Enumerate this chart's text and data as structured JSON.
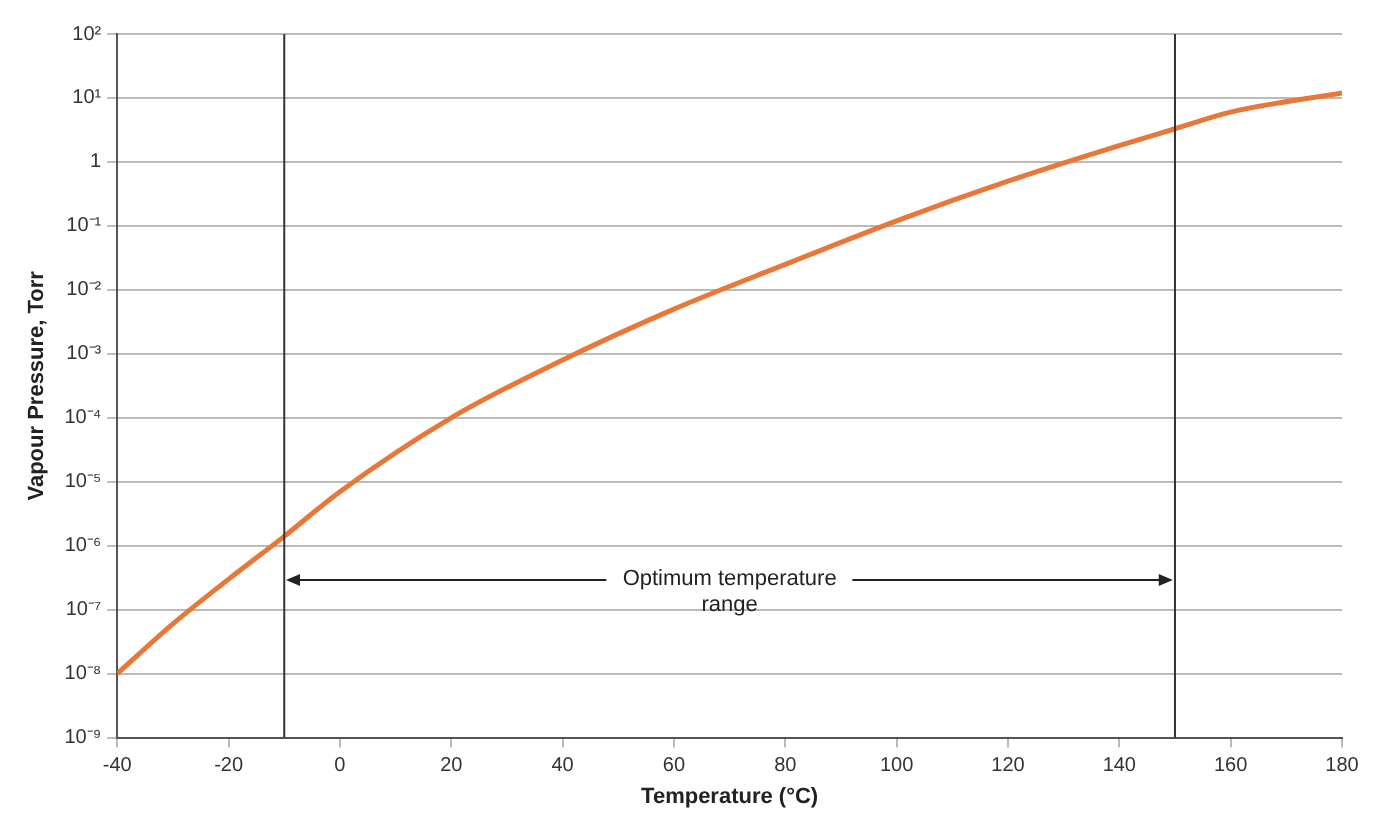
{
  "chart_data": {
    "type": "line",
    "xlabel": "Temperature (°C)",
    "ylabel": "Vapour Pressure, Torr",
    "x": [
      -40,
      -30,
      -20,
      -10,
      0,
      20,
      40,
      60,
      80,
      100,
      120,
      140,
      150,
      160,
      180
    ],
    "series": [
      {
        "color": "#e8783a",
        "values": [
          1e-08,
          6e-08,
          3e-07,
          1.4e-06,
          7e-06,
          0.0001,
          0.0008,
          0.005,
          0.025,
          0.12,
          0.5,
          1.8,
          3.3,
          6,
          12
        ]
      }
    ],
    "xlim": [
      -40,
      180
    ],
    "xticks": [
      -40,
      -20,
      0,
      20,
      40,
      60,
      80,
      100,
      120,
      140,
      160,
      180
    ],
    "log": "y",
    "ylim": [
      1e-09,
      100
    ],
    "yticks": [
      {
        "value": 1e-09,
        "label": "10⁻⁹"
      },
      {
        "value": 1e-08,
        "label": "10⁻⁸"
      },
      {
        "value": 1e-07,
        "label": "10⁻⁷"
      },
      {
        "value": 1e-06,
        "label": "10⁻⁶"
      },
      {
        "value": 1e-05,
        "label": "10⁻⁵"
      },
      {
        "value": 0.0001,
        "label": "10⁻⁴"
      },
      {
        "value": 0.001,
        "label": "10⁻³"
      },
      {
        "value": 0.01,
        "label": "10⁻²"
      },
      {
        "value": 0.1,
        "label": "10⁻¹"
      },
      {
        "value": 1,
        "label": "1"
      },
      {
        "value": 10,
        "label": "10¹"
      },
      {
        "value": 100,
        "label": "10²"
      }
    ],
    "grid": "y",
    "marker": "none",
    "line_style": "solid",
    "ref_lines": [
      {
        "axis": "x",
        "value": -10,
        "color": "#333333"
      },
      {
        "axis": "x",
        "value": 150,
        "color": "#333333"
      }
    ],
    "annotations": [
      {
        "text": "Optimum temperature range",
        "x": -10,
        "y": 3e-07
      }
    ]
  }
}
